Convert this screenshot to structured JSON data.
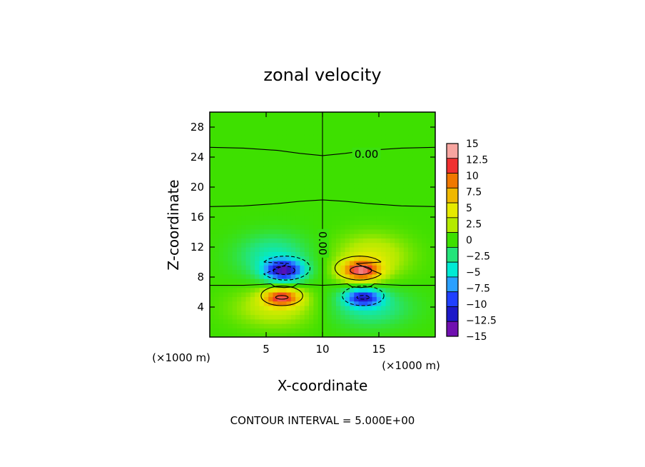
{
  "chart_data": {
    "type": "heatmap",
    "title": "zonal velocity",
    "xlabel": "X-coordinate",
    "ylabel": "Z-coordinate",
    "x_unit_left": "(×1000 m)",
    "x_unit_right": "(×1000 m)",
    "footer": "CONTOUR INTERVAL = 5.000E+00",
    "xlim": [
      0,
      20
    ],
    "ylim": [
      0,
      30
    ],
    "x_ticks": [
      5,
      10,
      15
    ],
    "y_ticks": [
      4,
      8,
      12,
      16,
      20,
      24,
      28
    ],
    "contour_interval": 5,
    "contour_labels": [
      {
        "text": "0.00",
        "x": 13.9,
        "z": 24.4,
        "rotate": 0
      },
      {
        "text": "0.00",
        "x": 10.0,
        "z": 12.5,
        "rotate": 90
      }
    ],
    "features": [
      {
        "name": "upper-left negative lobe",
        "x": 6.5,
        "z": 8.8,
        "peak": -12
      },
      {
        "name": "upper-right positive lobe",
        "x": 13.5,
        "z": 8.8,
        "peak": 12
      },
      {
        "name": "lower-left positive lobe",
        "x": 6.5,
        "z": 5.3,
        "peak": 11
      },
      {
        "name": "lower-right negative lobe",
        "x": 13.5,
        "z": 5.3,
        "peak": -10
      }
    ],
    "colorbar": {
      "labels": [
        "15",
        "12.5",
        "10",
        "7.5",
        "5",
        "2.5",
        "0",
        "−2.5",
        "−5",
        "−7.5",
        "−10",
        "−12.5",
        "−15"
      ],
      "colors": [
        "#f7a5a0",
        "#f03030",
        "#f07800",
        "#f0b800",
        "#e6ea00",
        "#b4ea00",
        "#3ee000",
        "#24e47a",
        "#00ead4",
        "#2aa0ff",
        "#2040ff",
        "#1c18c8",
        "#7010b0"
      ]
    }
  }
}
